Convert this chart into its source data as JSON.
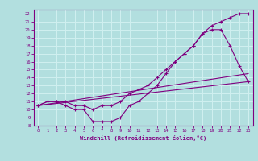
{
  "xlabel": "Windchill (Refroidissement éolien,°C)",
  "bg_color": "#b2dfdf",
  "grid_color": "#d0f0f0",
  "line_color": "#800080",
  "xlim": [
    -0.5,
    23.5
  ],
  "ylim": [
    8,
    22.5
  ],
  "xticks": [
    0,
    1,
    2,
    3,
    4,
    5,
    6,
    7,
    8,
    9,
    10,
    11,
    12,
    13,
    14,
    15,
    16,
    17,
    18,
    19,
    20,
    21,
    22,
    23
  ],
  "yticks": [
    8,
    9,
    10,
    11,
    12,
    13,
    14,
    15,
    16,
    17,
    18,
    19,
    20,
    21,
    22
  ],
  "line1_x": [
    0,
    1,
    2,
    3,
    4,
    5,
    6,
    7,
    8,
    9,
    10,
    11,
    12,
    13,
    14,
    15,
    16,
    17,
    18,
    19,
    20,
    21,
    22,
    23
  ],
  "line1_y": [
    10.5,
    11,
    11,
    10.5,
    10,
    10,
    8.5,
    8.5,
    8.5,
    9,
    10.5,
    11,
    12,
    13,
    14.5,
    16,
    17,
    18,
    19.5,
    20.5,
    21,
    21.5,
    22,
    22
  ],
  "line2_x": [
    0,
    1,
    2,
    3,
    4,
    5,
    6,
    7,
    8,
    9,
    10,
    11,
    12,
    13,
    14,
    15,
    16,
    17,
    18,
    19,
    20,
    21,
    22,
    23
  ],
  "line2_y": [
    10.5,
    11,
    11,
    11,
    10.5,
    10.5,
    10,
    10.5,
    10.5,
    11,
    12,
    12.5,
    13,
    14,
    15,
    16,
    17,
    18,
    19.5,
    20,
    20,
    18,
    15.5,
    13.5
  ],
  "line3_x": [
    0,
    23
  ],
  "line3_y": [
    10.5,
    13.5
  ],
  "line4_x": [
    0,
    23
  ],
  "line4_y": [
    10.5,
    14.5
  ]
}
